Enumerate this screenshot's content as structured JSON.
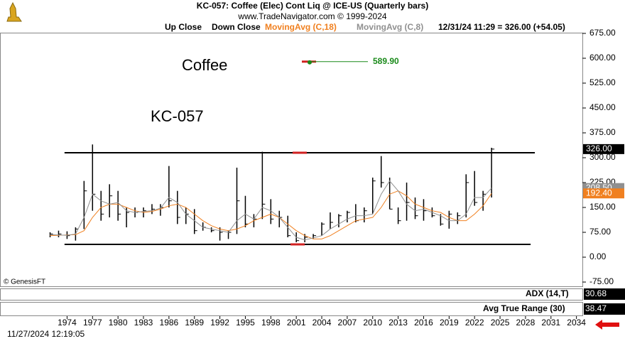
{
  "header": {
    "title": "KC-057:  Coffee (Elec) Cont Liq @ ICE-US  (Quarterly bars)",
    "subtitle": "www.TradeNavigator.com © 1999-2024",
    "last_quote": "12/31/24 11:29 = 326.00 (+54.05)",
    "timestamp": "11/27/2024 12:19:05",
    "credit": "© GenesisFT"
  },
  "chart_data": {
    "type": "ohlc",
    "annotations": [
      "Coffee",
      "KC-057"
    ],
    "bar_legend": [
      "Up Close",
      "Down Close"
    ],
    "bar_color": "#000000",
    "x": [
      1972,
      1973,
      1974,
      1975,
      1976,
      1977,
      1978,
      1979,
      1980,
      1981,
      1982,
      1983,
      1984,
      1985,
      1986,
      1987,
      1988,
      1989,
      1990,
      1991,
      1992,
      1993,
      1994,
      1995,
      1996,
      1997,
      1998,
      1999,
      2000,
      2001,
      2002,
      2003,
      2004,
      2005,
      2006,
      2007,
      2008,
      2009,
      2010,
      2011,
      2012,
      2013,
      2014,
      2015,
      2016,
      2017,
      2018,
      2019,
      2020,
      2021,
      2022,
      2023,
      2024
    ],
    "high": [
      75,
      80,
      78,
      90,
      230,
      340,
      200,
      220,
      200,
      150,
      150,
      150,
      160,
      160,
      275,
      200,
      150,
      145,
      105,
      90,
      90,
      80,
      270,
      185,
      130,
      318,
      175,
      140,
      125,
      75,
      70,
      70,
      105,
      135,
      130,
      140,
      160,
      150,
      240,
      305,
      240,
      150,
      225,
      180,
      175,
      150,
      130,
      140,
      135,
      250,
      260,
      200,
      330
    ],
    "low": [
      60,
      60,
      55,
      50,
      85,
      140,
      110,
      120,
      110,
      90,
      120,
      120,
      130,
      125,
      150,
      100,
      100,
      70,
      80,
      75,
      50,
      55,
      70,
      90,
      90,
      115,
      100,
      90,
      60,
      45,
      45,
      55,
      65,
      85,
      90,
      105,
      105,
      105,
      130,
      210,
      145,
      100,
      110,
      115,
      110,
      120,
      95,
      86,
      100,
      120,
      155,
      140,
      180
    ],
    "close": [
      70,
      70,
      65,
      85,
      200,
      190,
      130,
      185,
      130,
      135,
      135,
      140,
      145,
      150,
      170,
      120,
      130,
      80,
      90,
      80,
      75,
      75,
      170,
      100,
      115,
      160,
      115,
      120,
      65,
      50,
      60,
      65,
      100,
      105,
      125,
      135,
      110,
      140,
      230,
      225,
      145,
      110,
      165,
      125,
      140,
      125,
      100,
      130,
      125,
      225,
      165,
      190,
      326
    ],
    "series": [
      {
        "name": "MovingAvg (C,18)",
        "color": "#f08020",
        "values": [
          65,
          66,
          67,
          68,
          80,
          120,
          150,
          160,
          160,
          150,
          140,
          135,
          138,
          145,
          155,
          160,
          150,
          130,
          110,
          95,
          85,
          80,
          85,
          95,
          110,
          120,
          130,
          120,
          100,
          80,
          65,
          55,
          55,
          65,
          80,
          95,
          110,
          115,
          120,
          150,
          190,
          200,
          185,
          160,
          150,
          140,
          135,
          120,
          110,
          110,
          130,
          155,
          192.4
        ]
      },
      {
        "name": "MovingAvg (C,8)",
        "color": "#909090",
        "values": [
          68,
          67,
          66,
          70,
          120,
          190,
          170,
          160,
          165,
          140,
          135,
          138,
          140,
          148,
          180,
          165,
          130,
          110,
          90,
          85,
          80,
          75,
          110,
          130,
          115,
          150,
          140,
          120,
          90,
          60,
          52,
          58,
          65,
          85,
          100,
          115,
          125,
          125,
          130,
          190,
          230,
          200,
          160,
          140,
          145,
          135,
          125,
          110,
          110,
          130,
          180,
          180,
          208.5
        ]
      }
    ],
    "price_labels": [
      {
        "value": 208.5,
        "label": "208.50",
        "color": "#909090"
      },
      {
        "value": 326,
        "label": "326.00",
        "color": "#000000"
      },
      {
        "value": 192.4,
        "label": "192.40",
        "color": "#f08020"
      }
    ],
    "hlines": [
      {
        "value": 315,
        "xrange": [
          1973.7,
          2029.1
        ]
      },
      {
        "value": 38.6,
        "xrange": [
          1973.7,
          2028.6
        ]
      }
    ],
    "marker": {
      "value": 589.9,
      "label": "589.90",
      "color": "#1a8a1a"
    },
    "xlim": [
      1966.1,
      2034.7
    ],
    "ylim": [
      -92.1,
      690
    ],
    "xticks": [
      1974,
      1977,
      1980,
      1983,
      1986,
      1989,
      1992,
      1995,
      1998,
      2001,
      2004,
      2007,
      2010,
      2013,
      2016,
      2019,
      2022,
      2025,
      2028,
      2031,
      2034
    ],
    "yticks": [
      {
        "value": 675,
        "label": "675.00"
      },
      {
        "value": 600,
        "label": "600.00"
      },
      {
        "value": 525,
        "label": "525.00"
      },
      {
        "value": 450,
        "label": "450.00"
      },
      {
        "value": 375,
        "label": "375.00"
      },
      {
        "value": 300,
        "label": "300.00"
      },
      {
        "value": 225,
        "label": "225.00"
      },
      {
        "value": 150,
        "label": "150.00"
      },
      {
        "value": 75,
        "label": "75.00"
      },
      {
        "value": 0,
        "label": "0.00"
      },
      {
        "value": -75,
        "label": "-75.00"
      }
    ],
    "indicators": [
      {
        "name": "ADX (14,T)",
        "label": "30.68"
      },
      {
        "name": "Avg True Range (30)",
        "label": "38.47"
      }
    ]
  }
}
